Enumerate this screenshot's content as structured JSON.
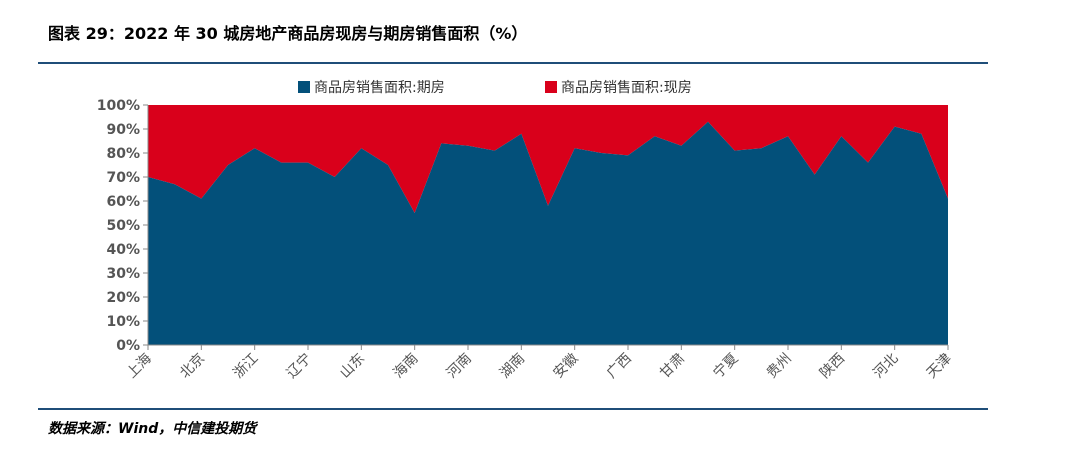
{
  "title": "图表 29：2022 年 30 城房地产商品房现房与期房销售面积（%）",
  "source": "数据来源：Wind，中信建投期货",
  "colors": {
    "series1": "#03507a",
    "series2": "#d9001b",
    "rule": "#1f4e79"
  },
  "chart_data": {
    "type": "area",
    "stacked": true,
    "percent": true,
    "categories": [
      "上海",
      "北京",
      "浙江",
      "辽宁",
      "山东",
      "海南",
      "河南",
      "湖南",
      "安徽",
      "广西",
      "甘肃",
      "宁夏",
      "贵州",
      "陕西",
      "河北",
      "天津"
    ],
    "x": [
      "上海",
      "x1",
      "北京",
      "x3",
      "浙江",
      "x5",
      "辽宁",
      "x7",
      "山东",
      "x9",
      "海南",
      "x11",
      "河南",
      "x13",
      "湖南",
      "x15",
      "安徽",
      "x17",
      "广西",
      "x19",
      "甘肃",
      "x21",
      "宁夏",
      "x23",
      "贵州",
      "x25",
      "陕西",
      "x27",
      "河北",
      "x29",
      "天津"
    ],
    "series": [
      {
        "name": "商品房销售面积:期房",
        "values": [
          70,
          67,
          61,
          75,
          82,
          76,
          76,
          70,
          82,
          75,
          55,
          84,
          83,
          81,
          88,
          58,
          82,
          80,
          79,
          87,
          83,
          93,
          81,
          82,
          87,
          71,
          87,
          76,
          91,
          88,
          61
        ]
      },
      {
        "name": "商品房销售面积:现房",
        "values": [
          30,
          33,
          39,
          25,
          18,
          24,
          24,
          30,
          18,
          25,
          45,
          16,
          17,
          19,
          12,
          42,
          18,
          20,
          21,
          13,
          17,
          7,
          19,
          18,
          13,
          29,
          13,
          24,
          9,
          12,
          39
        ]
      }
    ],
    "ytick_labels": [
      "0%",
      "10%",
      "20%",
      "30%",
      "40%",
      "50%",
      "60%",
      "70%",
      "80%",
      "90%",
      "100%"
    ],
    "ylim": [
      0,
      100
    ],
    "legend": "top-center",
    "grid": false
  }
}
